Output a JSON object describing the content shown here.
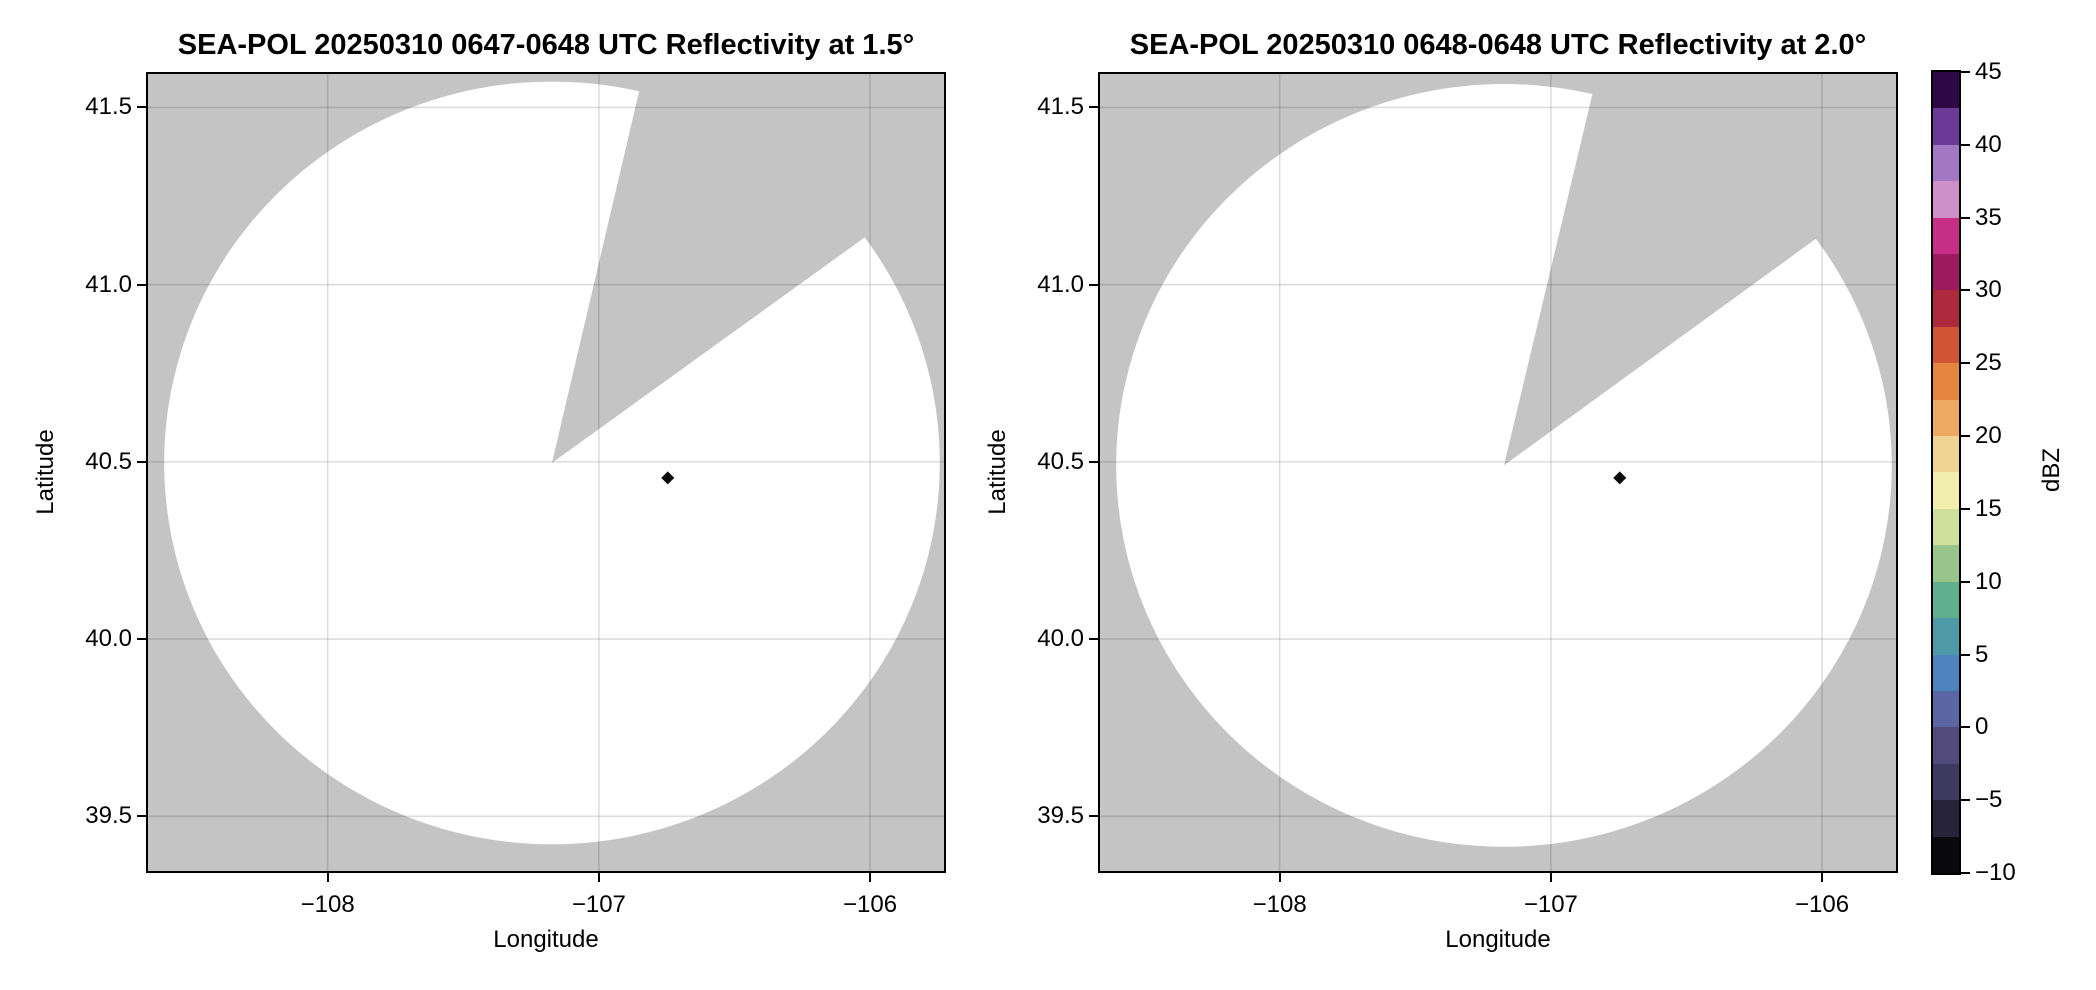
{
  "figure": {
    "panels": [
      {
        "title": "SEA-POL 20250310 0647-0648 UTC Reflectivity at 1.5°",
        "xlabel": "Longitude",
        "ylabel": "Latitude"
      },
      {
        "title": "SEA-POL 20250310 0648-0648 UTC Reflectivity at 2.0°",
        "xlabel": "Longitude",
        "ylabel": "Latitude"
      }
    ],
    "colorbar": {
      "label": "dBZ",
      "range": [
        -10,
        45
      ],
      "ticks": [
        {
          "v": 45,
          "label": "45"
        },
        {
          "v": 40,
          "label": "40"
        },
        {
          "v": 35,
          "label": "35"
        },
        {
          "v": 30,
          "label": "30"
        },
        {
          "v": 25,
          "label": "25"
        },
        {
          "v": 20,
          "label": "20"
        },
        {
          "v": 15,
          "label": "15"
        },
        {
          "v": 10,
          "label": "10"
        },
        {
          "v": 5,
          "label": "5"
        },
        {
          "v": 0,
          "label": "0"
        },
        {
          "v": -5,
          "label": "−5"
        },
        {
          "v": -10,
          "label": "−10"
        }
      ],
      "segments": [
        {
          "range": [
            42.5,
            45
          ],
          "color": "#2e0845"
        },
        {
          "range": [
            40,
            42.5
          ],
          "color": "#6b3a96"
        },
        {
          "range": [
            37.5,
            40
          ],
          "color": "#a178c1"
        },
        {
          "range": [
            35,
            37.5
          ],
          "color": "#cf8fc9"
        },
        {
          "range": [
            32.5,
            35
          ],
          "color": "#c72e86"
        },
        {
          "range": [
            30,
            32.5
          ],
          "color": "#9c1a5e"
        },
        {
          "range": [
            27.5,
            30
          ],
          "color": "#ad2a3c"
        },
        {
          "range": [
            25,
            27.5
          ],
          "color": "#d05536"
        },
        {
          "range": [
            22.5,
            25
          ],
          "color": "#e68540"
        },
        {
          "range": [
            20,
            22.5
          ],
          "color": "#edaa60"
        },
        {
          "range": [
            17.5,
            20
          ],
          "color": "#f0d494"
        },
        {
          "range": [
            15,
            17.5
          ],
          "color": "#f2efae"
        },
        {
          "range": [
            12.5,
            15
          ],
          "color": "#cfe09d"
        },
        {
          "range": [
            10,
            12.5
          ],
          "color": "#97c58c"
        },
        {
          "range": [
            7.5,
            10
          ],
          "color": "#5fae8e"
        },
        {
          "range": [
            5,
            7.5
          ],
          "color": "#4f9aa8"
        },
        {
          "range": [
            2.5,
            5
          ],
          "color": "#4c83bd"
        },
        {
          "range": [
            0,
            2.5
          ],
          "color": "#5a67a4"
        },
        {
          "range": [
            -2.5,
            0
          ],
          "color": "#524b79"
        },
        {
          "range": [
            -5,
            -2.5
          ],
          "color": "#3e3a5f"
        },
        {
          "range": [
            -7.5,
            -5
          ],
          "color": "#272339"
        },
        {
          "range": [
            -10,
            -7.5
          ],
          "color": "#0a0a0e"
        }
      ]
    },
    "chart_data": [
      {
        "type": "heatmap",
        "subtype": "radar-ppi-reflectivity",
        "title": "SEA-POL 20250310 0647-0648 UTC Reflectivity at 1.5°",
        "xlabel": "Longitude",
        "ylabel": "Latitude",
        "xlim": [
          -108.67,
          -105.72
        ],
        "ylim": [
          39.34,
          41.6
        ],
        "x_ticks": [
          {
            "v": -108,
            "label": "−108"
          },
          {
            "v": -107,
            "label": "−107"
          },
          {
            "v": -106,
            "label": "−106"
          }
        ],
        "y_ticks": [
          {
            "v": 41.5,
            "label": "41.5"
          },
          {
            "v": 41.0,
            "label": "41.0"
          },
          {
            "v": 40.5,
            "label": "40.5"
          },
          {
            "v": 40.0,
            "label": "40.0"
          },
          {
            "v": 39.5,
            "label": "39.5"
          }
        ],
        "grid": true,
        "legend_position": "colorbar-right",
        "colorbar_label": "dBZ",
        "colorbar_range": [
          -10,
          45
        ],
        "radar_center": {
          "lon": -107.173,
          "lat": 40.497
        },
        "coverage_radius_deg": {
          "lon": 1.43,
          "lat": 1.076
        },
        "missing_sector_azimuth_deg": [
          13.2,
          54.2
        ],
        "background_color": "#c4c4c4",
        "coverage_color": "#ffffff",
        "echoes": [
          {
            "lon": -106.746,
            "lat": 40.455,
            "dbz_approx": -9,
            "color": "#0a0a0a"
          }
        ]
      },
      {
        "type": "heatmap",
        "subtype": "radar-ppi-reflectivity",
        "title": "SEA-POL 20250310 0648-0648 UTC Reflectivity at 2.0°",
        "xlabel": "Longitude",
        "ylabel": "Latitude",
        "xlim": [
          -108.67,
          -105.72
        ],
        "ylim": [
          39.34,
          41.6
        ],
        "x_ticks": [
          {
            "v": -108,
            "label": "−108"
          },
          {
            "v": -107,
            "label": "−107"
          },
          {
            "v": -106,
            "label": "−106"
          }
        ],
        "y_ticks": [
          {
            "v": 41.5,
            "label": "41.5"
          },
          {
            "v": 41.0,
            "label": "41.0"
          },
          {
            "v": 40.5,
            "label": "40.5"
          },
          {
            "v": 40.0,
            "label": "40.0"
          },
          {
            "v": 39.5,
            "label": "39.5"
          }
        ],
        "grid": true,
        "legend_position": "colorbar-right",
        "colorbar_label": "dBZ",
        "colorbar_range": [
          -10,
          45
        ],
        "radar_center": {
          "lon": -107.173,
          "lat": 40.49
        },
        "coverage_radius_deg": {
          "lon": 1.43,
          "lat": 1.076
        },
        "missing_sector_azimuth_deg": [
          13.4,
          54.0
        ],
        "background_color": "#c4c4c4",
        "coverage_color": "#ffffff",
        "echoes": [
          {
            "lon": -106.746,
            "lat": 40.455,
            "dbz_approx": -9,
            "color": "#0a0a0a"
          }
        ]
      }
    ]
  }
}
